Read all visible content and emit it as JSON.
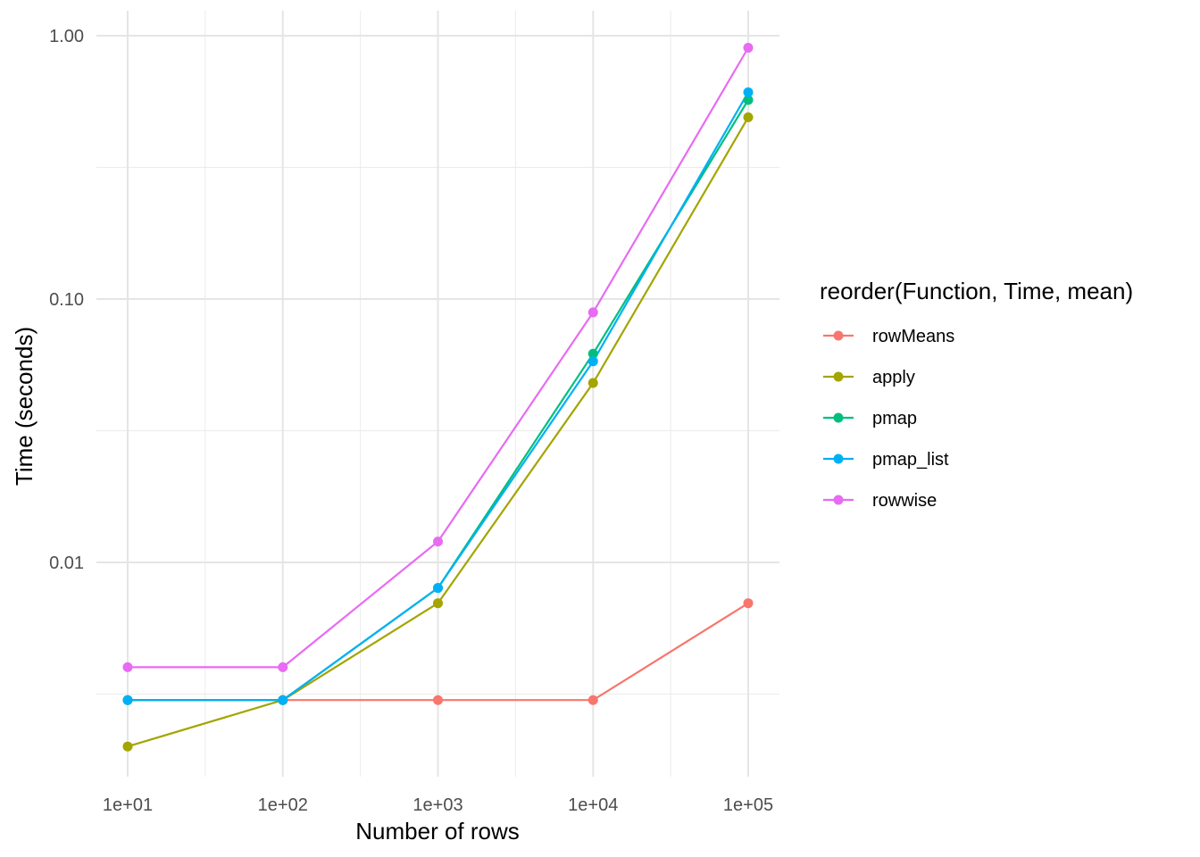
{
  "chart_data": {
    "type": "line",
    "xlabel": "Number of rows",
    "ylabel": "Time (seconds)",
    "x_scale": "log10",
    "y_scale": "log10",
    "x": [
      10,
      100,
      1000,
      10000,
      100000
    ],
    "x_tick_labels": [
      "1e+01",
      "1e+02",
      "1e+03",
      "1e+04",
      "1e+05"
    ],
    "y_ticks": [
      0.01,
      0.1,
      1.0
    ],
    "y_tick_labels": [
      "0.01",
      "0.10",
      "1.00"
    ],
    "xlim": [
      10,
      100000
    ],
    "ylim": [
      0.0016,
      1.0
    ],
    "grid": true,
    "legend_title": "reorder(Function, Time, mean)",
    "legend_position": "right",
    "series": [
      {
        "name": "rowMeans",
        "color": "#F8766D",
        "values": [
          0.003,
          0.003,
          0.003,
          0.003,
          0.007
        ]
      },
      {
        "name": "apply",
        "color": "#A3A500",
        "values": [
          0.002,
          0.003,
          0.007,
          0.048,
          0.49
        ]
      },
      {
        "name": "pmap",
        "color": "#00BF7D",
        "values": [
          0.003,
          0.003,
          0.008,
          0.062,
          0.57
        ]
      },
      {
        "name": "pmap_list",
        "color": "#00B0F6",
        "values": [
          0.003,
          0.003,
          0.008,
          0.058,
          0.61
        ]
      },
      {
        "name": "rowwise",
        "color": "#E76BF3",
        "values": [
          0.004,
          0.004,
          0.012,
          0.089,
          0.9
        ]
      }
    ]
  }
}
